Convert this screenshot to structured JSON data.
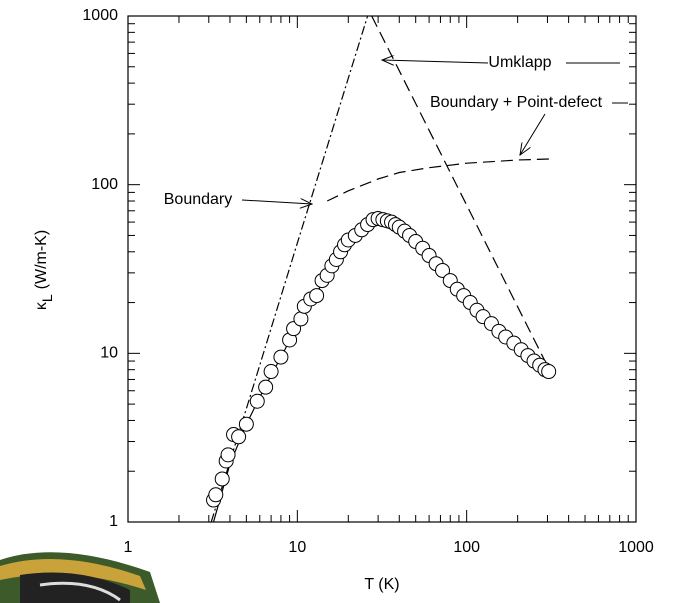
{
  "chart_data": {
    "type": "scatter",
    "xlabel": "T (K)",
    "ylabel": {
      "symbol": "κ",
      "subscript": "L",
      "unit": "(W/m-K)"
    },
    "log_x": true,
    "log_y": true,
    "xlim": [
      1,
      1000
    ],
    "ylim": [
      1,
      1000
    ],
    "xticks": [
      1,
      10,
      100,
      1000
    ],
    "yticks": [
      1,
      10,
      100,
      1000
    ],
    "xminor_ticks": [
      2,
      3,
      4,
      5,
      6,
      7,
      8,
      9,
      20,
      30,
      40,
      50,
      60,
      70,
      80,
      90,
      200,
      300,
      400,
      500,
      600,
      700,
      800,
      900
    ],
    "yminor_ticks": [
      2,
      3,
      4,
      5,
      6,
      7,
      8,
      9,
      20,
      30,
      40,
      50,
      60,
      70,
      80,
      90,
      200,
      300,
      400,
      500,
      600,
      700,
      800,
      900
    ],
    "x": [
      3.2,
      3.3,
      3.6,
      3.8,
      3.9,
      4.2,
      4.5,
      5.0,
      5.8,
      6.5,
      7.0,
      8.0,
      9.0,
      9.5,
      10.5,
      11,
      12,
      13,
      14,
      15,
      16,
      17,
      18,
      19,
      20,
      22,
      24,
      26,
      28,
      30,
      32,
      34,
      36,
      38,
      40,
      43,
      46,
      50,
      55,
      60,
      66,
      72,
      80,
      88,
      96,
      105,
      115,
      125,
      140,
      155,
      170,
      190,
      210,
      230,
      250,
      270,
      290,
      305
    ],
    "values": [
      1.35,
      1.45,
      1.8,
      2.3,
      2.5,
      3.3,
      3.2,
      3.8,
      5.2,
      6.3,
      7.8,
      9.5,
      12,
      14,
      16,
      19,
      21,
      22,
      27,
      29,
      33,
      36,
      40,
      44,
      47,
      50,
      54,
      58,
      62,
      63,
      62,
      61,
      60,
      58,
      56,
      53,
      50,
      46,
      42,
      38,
      34,
      31,
      27,
      24,
      22,
      20,
      18,
      16.5,
      15,
      13.5,
      12.5,
      11.5,
      10.5,
      9.7,
      9,
      8.5,
      8.0,
      7.8
    ],
    "lines": [
      {
        "style": "solid",
        "x": [
          3.2,
          4,
          5,
          6,
          7,
          8,
          10,
          12,
          15,
          18,
          20,
          24,
          28,
          30,
          34,
          40,
          50,
          60,
          80,
          100,
          150,
          200,
          250,
          305
        ],
        "values": [
          1.0,
          2.2,
          3.8,
          5.5,
          7.4,
          9.5,
          14.5,
          20,
          29,
          39,
          45,
          54,
          60,
          61,
          60,
          56,
          47,
          39,
          28,
          21.5,
          14,
          11,
          9.2,
          7.8
        ]
      },
      {
        "style": "dashed",
        "x": [
          27.5,
          40,
          60,
          100,
          150,
          200,
          300
        ],
        "values": [
          1000,
          473,
          210,
          75.6,
          33.6,
          18.9,
          8.4
        ]
      },
      {
        "style": "dashdot",
        "x": [
          3.1,
          5,
          10,
          15,
          20,
          26
        ],
        "values": [
          1,
          4.7,
          45,
          168,
          428,
          1000
        ]
      },
      {
        "style": "dashed",
        "x": [
          15,
          20,
          30,
          40,
          60,
          100,
          200,
          310
        ],
        "values": [
          80,
          92,
          108,
          118,
          126,
          134,
          140,
          142
        ]
      }
    ],
    "annotations": [
      "Umklapp",
      "Boundary + Point-defect",
      "Boundary"
    ]
  }
}
